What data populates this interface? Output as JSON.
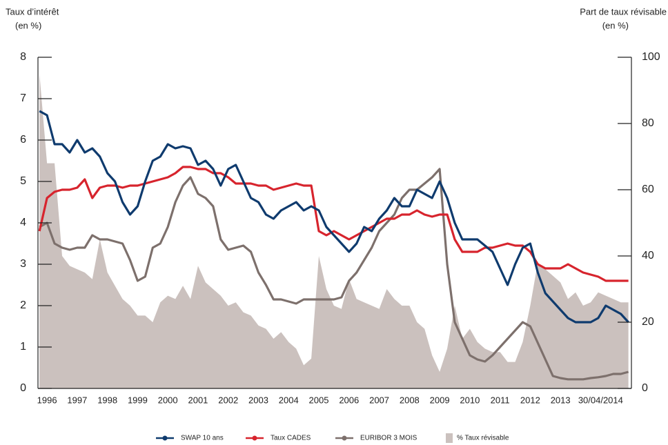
{
  "chart_data": {
    "type": "line",
    "ylabel": [
      "Taux d’intérêt",
      "(en %)"
    ],
    "y2label": [
      "Part de taux révisable",
      "(en %)"
    ],
    "x": [
      1995.75,
      1996,
      1996.25,
      1996.5,
      1996.75,
      1997,
      1997.25,
      1997.5,
      1997.75,
      1998,
      1998.25,
      1998.5,
      1998.75,
      1999,
      1999.25,
      1999.5,
      1999.75,
      2000,
      2000.25,
      2000.5,
      2000.75,
      2001,
      2001.25,
      2001.5,
      2001.75,
      2002,
      2002.25,
      2002.5,
      2002.75,
      2003,
      2003.25,
      2003.5,
      2003.75,
      2004,
      2004.25,
      2004.5,
      2004.75,
      2005,
      2005.25,
      2005.5,
      2005.75,
      2006,
      2006.25,
      2006.5,
      2006.75,
      2007,
      2007.25,
      2007.5,
      2007.75,
      2008,
      2008.25,
      2008.5,
      2008.75,
      2009,
      2009.25,
      2009.5,
      2009.75,
      2010,
      2010.25,
      2010.5,
      2010.75,
      2011,
      2011.25,
      2011.5,
      2011.75,
      2012,
      2012.25,
      2012.5,
      2012.75,
      2013,
      2013.25,
      2013.5,
      2013.75,
      2014,
      2014.25,
      2014.5,
      2014.75,
      2015,
      2015.25
    ],
    "xlim": [
      1995.7,
      2015.35
    ],
    "xticks": [
      1996,
      1997,
      1998,
      1999,
      2000,
      2001,
      2002,
      2003,
      2004,
      2005,
      2006,
      2007,
      2008,
      2009,
      2010,
      2011,
      2012,
      2013,
      {
        "value": 2014.33,
        "label": "30/04/2014"
      }
    ],
    "ylim": [
      0,
      8
    ],
    "yticks": [
      0,
      1,
      2,
      3,
      4,
      5,
      6,
      7,
      8
    ],
    "y2lim": [
      0,
      100
    ],
    "y2ticks": [
      0,
      20,
      40,
      60,
      80,
      100
    ],
    "series": [
      {
        "name": "% Taux révisable",
        "type": "area",
        "axis": "y2",
        "color": "#cbc1be",
        "values": [
          95,
          68,
          68,
          40,
          37,
          36,
          35,
          33,
          45,
          35,
          31,
          27,
          25,
          22,
          22,
          20,
          26,
          28,
          27,
          31,
          27,
          37,
          32,
          30,
          28,
          25,
          26,
          23,
          22,
          19,
          18,
          15,
          17,
          14,
          12,
          7,
          9,
          40,
          30,
          25,
          24,
          33,
          27,
          26,
          25,
          24,
          30,
          27,
          25,
          25,
          20,
          18,
          10,
          5,
          12,
          25,
          15,
          18,
          14,
          12,
          11,
          11,
          8,
          8,
          14,
          25,
          38,
          36,
          34,
          32,
          27,
          29,
          25,
          26,
          29,
          28,
          27,
          26,
          26
        ]
      },
      {
        "name": "EURIBOR 3 MOIS",
        "type": "line",
        "color": "#7d706c",
        "values": [
          3.9,
          4.0,
          3.5,
          3.4,
          3.35,
          3.4,
          3.4,
          3.7,
          3.6,
          3.6,
          3.55,
          3.5,
          3.1,
          2.6,
          2.7,
          3.4,
          3.5,
          3.9,
          4.5,
          4.9,
          5.1,
          4.7,
          4.6,
          4.4,
          3.6,
          3.35,
          3.4,
          3.45,
          3.3,
          2.8,
          2.5,
          2.15,
          2.15,
          2.1,
          2.05,
          2.15,
          2.15,
          2.15,
          2.15,
          2.15,
          2.2,
          2.6,
          2.8,
          3.1,
          3.4,
          3.8,
          4.0,
          4.2,
          4.6,
          4.8,
          4.8,
          4.95,
          5.1,
          5.3,
          3.0,
          1.6,
          1.2,
          0.8,
          0.7,
          0.65,
          0.8,
          1.0,
          1.2,
          1.4,
          1.6,
          1.5,
          1.1,
          0.7,
          0.3,
          0.25,
          0.22,
          0.22,
          0.22,
          0.25,
          0.27,
          0.3,
          0.35,
          0.35,
          0.4
        ]
      },
      {
        "name": "Taux CADES",
        "type": "line",
        "color": "#d7242d",
        "values": [
          3.8,
          4.6,
          4.75,
          4.8,
          4.8,
          4.85,
          5.05,
          4.6,
          4.85,
          4.9,
          4.9,
          4.85,
          4.9,
          4.9,
          4.95,
          5.0,
          5.05,
          5.1,
          5.2,
          5.35,
          5.35,
          5.3,
          5.3,
          5.2,
          5.2,
          5.1,
          4.95,
          4.95,
          4.95,
          4.9,
          4.9,
          4.8,
          4.85,
          4.9,
          4.95,
          4.9,
          4.9,
          3.8,
          3.7,
          3.8,
          3.7,
          3.6,
          3.7,
          3.8,
          3.9,
          4.0,
          4.1,
          4.1,
          4.2,
          4.2,
          4.3,
          4.2,
          4.15,
          4.2,
          4.2,
          3.6,
          3.3,
          3.3,
          3.3,
          3.4,
          3.4,
          3.45,
          3.5,
          3.45,
          3.45,
          3.3,
          3.0,
          2.9,
          2.9,
          2.9,
          3.0,
          2.9,
          2.8,
          2.75,
          2.7,
          2.6,
          2.6,
          2.6,
          2.6
        ]
      },
      {
        "name": "SWAP 10 ans",
        "type": "line",
        "color": "#0f3b6e",
        "values": [
          6.7,
          6.6,
          5.9,
          5.9,
          5.7,
          6.0,
          5.7,
          5.8,
          5.6,
          5.2,
          5.0,
          4.5,
          4.2,
          4.4,
          5.0,
          5.5,
          5.6,
          5.9,
          5.8,
          5.85,
          5.8,
          5.4,
          5.5,
          5.3,
          4.9,
          5.3,
          5.4,
          5.0,
          4.6,
          4.5,
          4.2,
          4.1,
          4.3,
          4.4,
          4.5,
          4.3,
          4.4,
          4.3,
          3.9,
          3.7,
          3.5,
          3.3,
          3.5,
          3.9,
          3.8,
          4.1,
          4.3,
          4.6,
          4.4,
          4.4,
          4.8,
          4.7,
          4.6,
          5.0,
          4.6,
          4.0,
          3.6,
          3.6,
          3.6,
          3.45,
          3.3,
          2.9,
          2.5,
          3.0,
          3.4,
          3.5,
          2.8,
          2.3,
          2.1,
          1.9,
          1.7,
          1.6,
          1.6,
          1.6,
          1.7,
          2.0,
          1.9,
          1.8,
          1.6
        ]
      }
    ],
    "legend_order": [
      3,
      2,
      1,
      0
    ]
  }
}
